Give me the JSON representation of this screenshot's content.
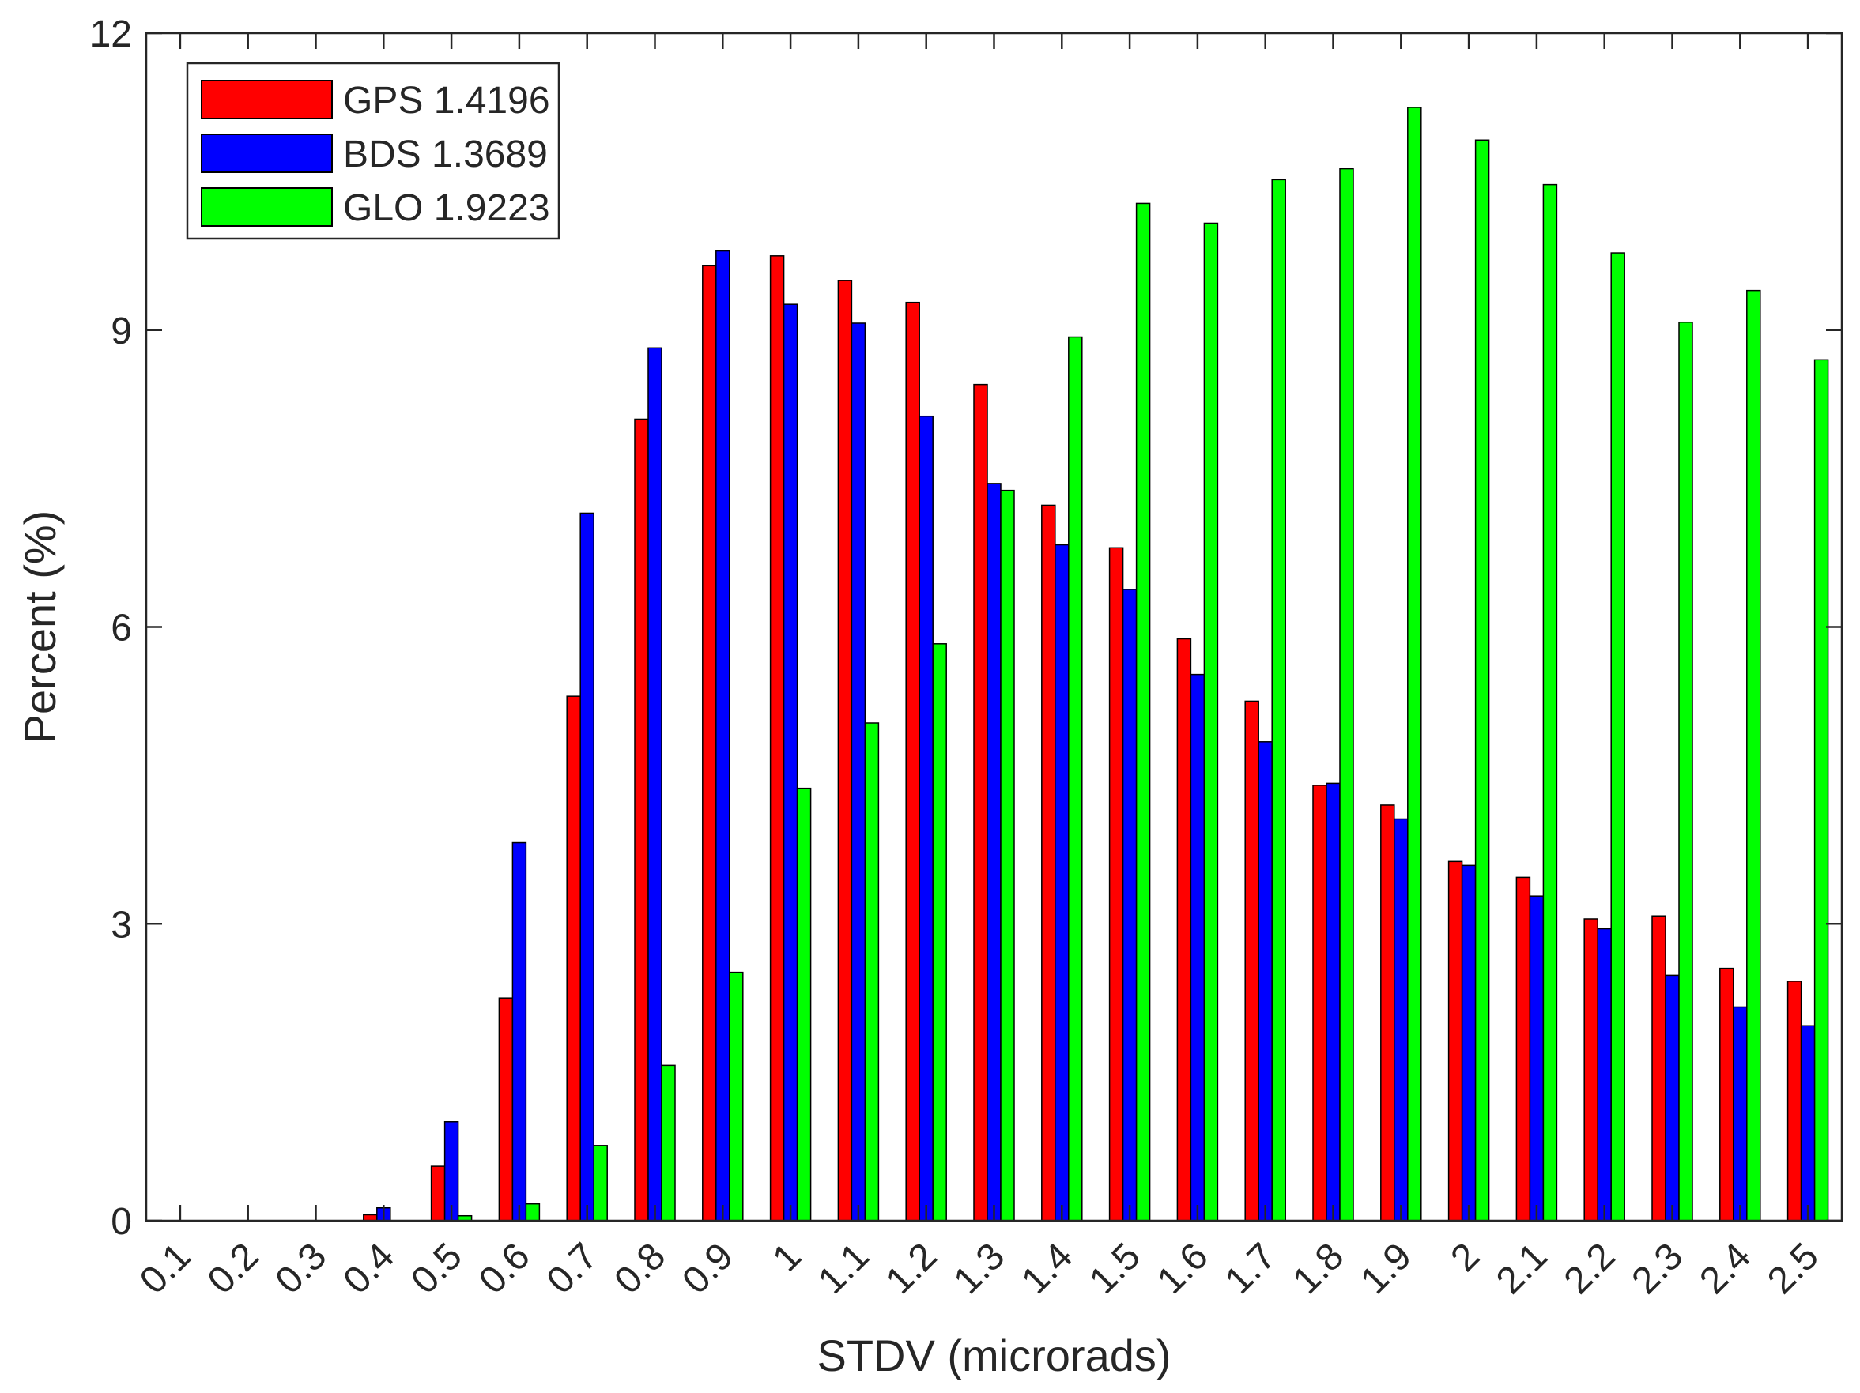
{
  "chart_data": {
    "type": "bar",
    "xlabel": "STDV (microrads)",
    "ylabel": "Percent (%)",
    "ylim": [
      0,
      12
    ],
    "yticks": [
      "0",
      "3",
      "6",
      "9",
      "12"
    ],
    "yticks_values": [
      0,
      3,
      6,
      9,
      12
    ],
    "categories": [
      "0.1",
      "0.2",
      "0.3",
      "0.4",
      "0.5",
      "0.6",
      "0.7",
      "0.8",
      "0.9",
      "1",
      "1.1",
      "1.2",
      "1.3",
      "1.4",
      "1.5",
      "1.6",
      "1.7",
      "1.8",
      "1.9",
      "2",
      "2.1",
      "2.2",
      "2.3",
      "2.4",
      "2.5"
    ],
    "legend_position": "top-left",
    "grid": false,
    "series": [
      {
        "name": "GPS 1.4196",
        "color": "#ff0000",
        "values": [
          0,
          0,
          0,
          0.06,
          0.55,
          2.25,
          5.3,
          8.1,
          9.65,
          9.75,
          9.5,
          9.28,
          8.45,
          7.23,
          6.8,
          5.88,
          5.25,
          4.4,
          4.2,
          3.63,
          3.47,
          3.05,
          3.08,
          2.55,
          2.42
        ]
      },
      {
        "name": "BDS 1.3689",
        "color": "#0000ff",
        "values": [
          0,
          0,
          0,
          0.13,
          1.0,
          3.82,
          7.15,
          8.82,
          9.8,
          9.26,
          9.07,
          8.13,
          7.45,
          6.83,
          6.38,
          5.52,
          4.84,
          4.42,
          4.06,
          3.59,
          3.28,
          2.95,
          2.48,
          2.16,
          1.97
        ]
      },
      {
        "name": "GLO 1.9223",
        "color": "#00ff00",
        "values": [
          0,
          0,
          0,
          0,
          0.05,
          0.17,
          0.76,
          1.57,
          2.51,
          4.37,
          5.03,
          5.83,
          7.38,
          8.93,
          10.28,
          10.08,
          10.52,
          10.63,
          11.25,
          10.92,
          10.47,
          9.78,
          9.08,
          9.4,
          8.7
        ]
      }
    ]
  }
}
